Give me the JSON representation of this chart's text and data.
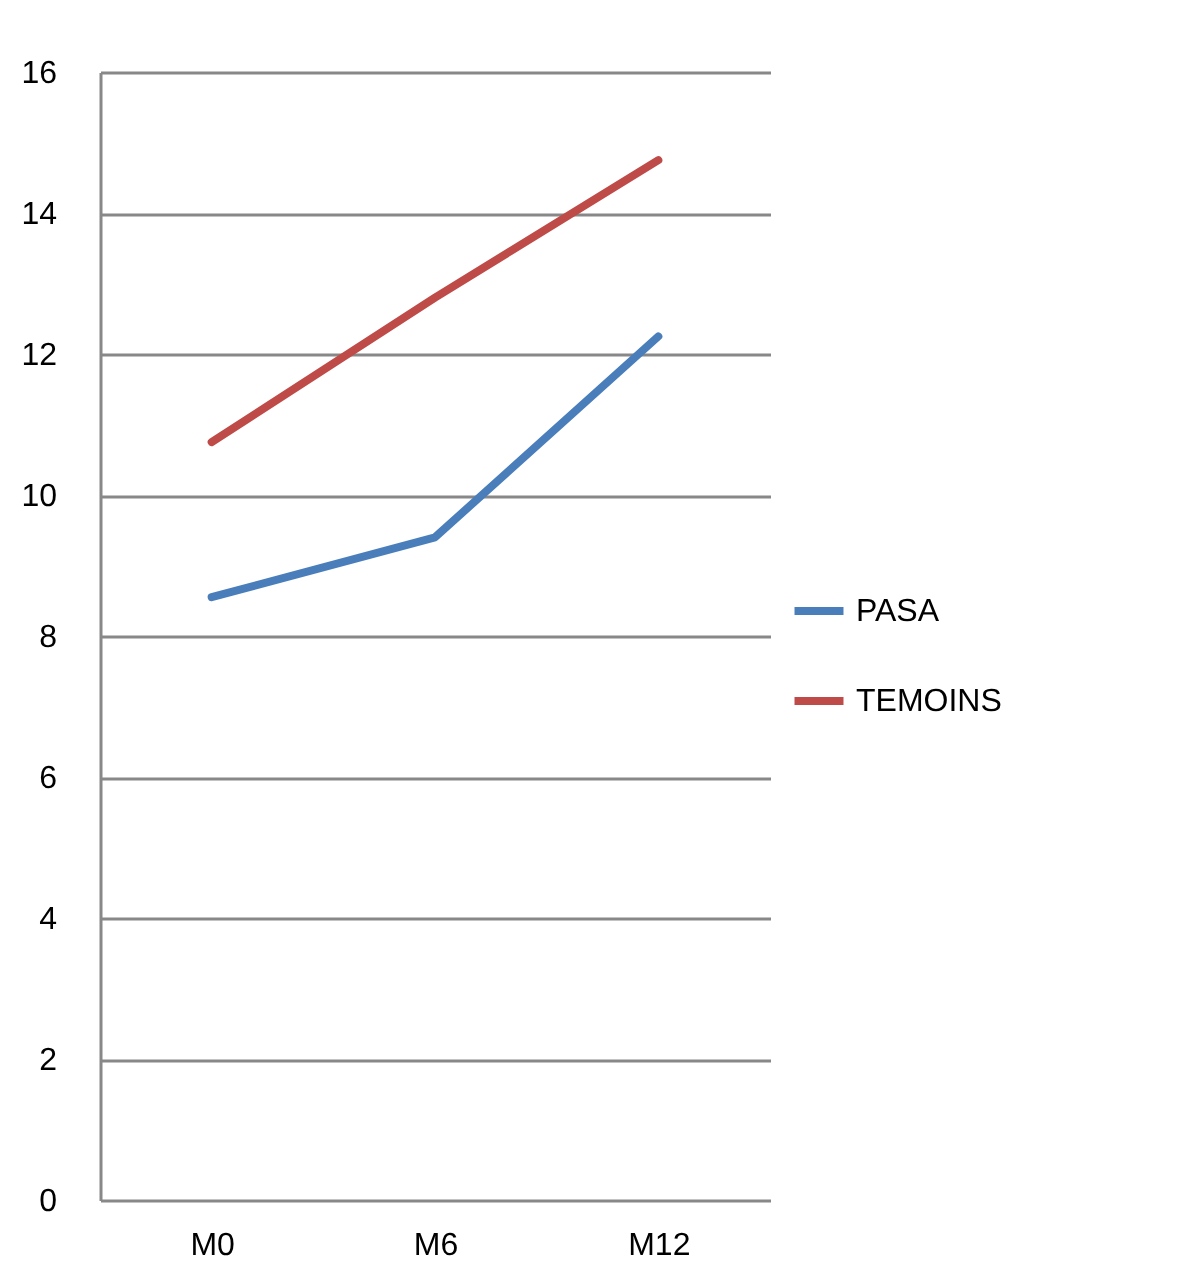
{
  "chart_data": {
    "type": "line",
    "categories": [
      "M0",
      "M6",
      "M12"
    ],
    "series": [
      {
        "name": "PASA",
        "color": "#4a7ebb",
        "values": [
          8.55,
          9.4,
          12.25
        ]
      },
      {
        "name": "TEMOINS",
        "color": "#be4b48",
        "values": [
          10.75,
          12.8,
          14.75
        ]
      }
    ],
    "ylim": [
      0,
      16
    ],
    "yticks": [
      0,
      2,
      4,
      6,
      8,
      10,
      12,
      14,
      16
    ],
    "grid": "y",
    "legend": "right",
    "marker": "none",
    "line_style": "solid"
  }
}
